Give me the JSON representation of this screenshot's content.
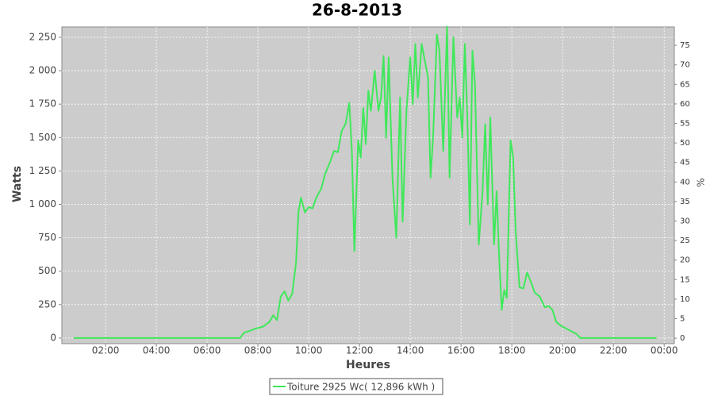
{
  "chart_data": {
    "type": "line",
    "title": "26-8-2013",
    "x_label": "Heures",
    "y_label": "Watts",
    "y2_label": "%",
    "x": [
      0.75,
      7.3,
      7.45,
      7.7,
      7.9,
      8.2,
      8.45,
      8.6,
      8.75,
      8.9,
      9.05,
      9.2,
      9.35,
      9.5,
      9.6,
      9.7,
      9.85,
      10.0,
      10.15,
      10.3,
      10.5,
      10.65,
      10.85,
      11.0,
      11.15,
      11.3,
      11.45,
      11.6,
      11.7,
      11.8,
      11.95,
      12.05,
      12.15,
      12.25,
      12.35,
      12.45,
      12.6,
      12.75,
      12.85,
      12.95,
      13.05,
      13.15,
      13.3,
      13.45,
      13.6,
      13.7,
      13.85,
      14.0,
      14.1,
      14.2,
      14.3,
      14.45,
      14.6,
      14.7,
      14.8,
      14.9,
      15.05,
      15.15,
      15.3,
      15.45,
      15.55,
      15.7,
      15.85,
      15.95,
      16.05,
      16.15,
      16.25,
      16.35,
      16.45,
      16.55,
      16.7,
      16.85,
      16.95,
      17.05,
      17.15,
      17.3,
      17.4,
      17.5,
      17.6,
      17.7,
      17.8,
      17.95,
      18.05,
      18.15,
      18.3,
      18.45,
      18.6,
      18.75,
      18.9,
      19.1,
      19.3,
      19.45,
      19.6,
      19.75,
      19.95,
      20.15,
      20.35,
      20.55,
      20.7,
      23.7
    ],
    "series": [
      {
        "name": "Toiture 2925 Wc( 12,896 kWh )",
        "color": "#3fe85a",
        "values": [
          0,
          0,
          40,
          55,
          70,
          85,
          120,
          170,
          135,
          310,
          350,
          280,
          330,
          560,
          950,
          1050,
          940,
          980,
          970,
          1050,
          1120,
          1230,
          1320,
          1400,
          1390,
          1550,
          1600,
          1760,
          1400,
          650,
          1480,
          1350,
          1720,
          1450,
          1850,
          1700,
          2000,
          1700,
          1800,
          2110,
          1500,
          2100,
          1200,
          750,
          1800,
          870,
          1700,
          2100,
          1750,
          2200,
          1800,
          2200,
          2050,
          1950,
          1200,
          1500,
          2270,
          2150,
          1400,
          2330,
          1200,
          2250,
          1650,
          1800,
          1500,
          2200,
          1650,
          850,
          2150,
          1900,
          700,
          1100,
          1600,
          1000,
          1650,
          700,
          1100,
          600,
          210,
          360,
          300,
          1480,
          1350,
          800,
          380,
          370,
          490,
          420,
          340,
          310,
          230,
          240,
          210,
          120,
          90,
          70,
          50,
          30,
          0,
          0
        ]
      }
    ],
    "xlim": [
      0.28,
      24.4
    ],
    "xticks": [
      {
        "value": 2,
        "label": "02:00"
      },
      {
        "value": 4,
        "label": "04:00"
      },
      {
        "value": 6,
        "label": "06:00"
      },
      {
        "value": 8,
        "label": "08:00"
      },
      {
        "value": 10,
        "label": "10:00"
      },
      {
        "value": 12,
        "label": "12:00"
      },
      {
        "value": 14,
        "label": "14:00"
      },
      {
        "value": 16,
        "label": "16:00"
      },
      {
        "value": 18,
        "label": "18:00"
      },
      {
        "value": 20,
        "label": "20:00"
      },
      {
        "value": 22,
        "label": "22:00"
      },
      {
        "value": 24,
        "label": "00:00"
      }
    ],
    "ylim": [
      -42,
      2327
    ],
    "yticks": [
      0,
      250,
      500,
      750,
      {
        "value": 1000,
        "label": "1 000"
      },
      {
        "value": 1250,
        "label": "1 250"
      },
      {
        "value": 1500,
        "label": "1 500"
      },
      {
        "value": 1750,
        "label": "1 750"
      },
      {
        "value": 2000,
        "label": "2 000"
      },
      {
        "value": 2250,
        "label": "2 250"
      }
    ],
    "y2lim": [
      -1.4,
      79.7
    ],
    "y2ticks": [
      0,
      5,
      10,
      15,
      20,
      25,
      30,
      35,
      40,
      45,
      50,
      55,
      60,
      65,
      70,
      75
    ],
    "grid": true
  }
}
